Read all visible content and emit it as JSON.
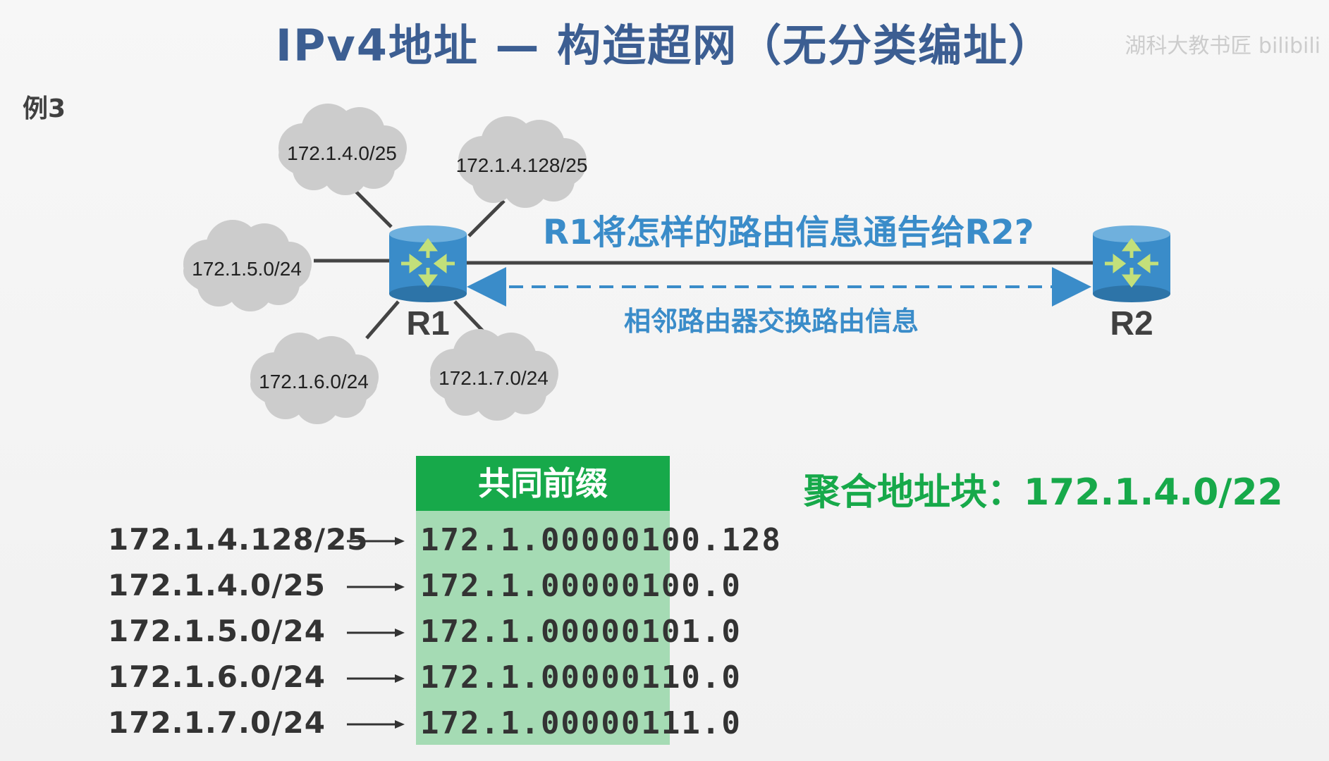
{
  "title": "IPv4地址 — 构造超网（无分类编址）",
  "watermark": "湖科大教书匠 bilibili",
  "example_label": "例3",
  "networks": [
    {
      "label": "172.1.4.0/25"
    },
    {
      "label": "172.1.4.128/25"
    },
    {
      "label": "172.1.5.0/24"
    },
    {
      "label": "172.1.6.0/24"
    },
    {
      "label": "172.1.7.0/24"
    }
  ],
  "routers": {
    "r1": "R1",
    "r2": "R2"
  },
  "question": "R1将怎样的路由信息通告给R2?",
  "exchange_label": "相邻路由器交换路由信息",
  "prefix_header": "共同前缀",
  "aggregate": "聚合地址块：172.1.4.0/22",
  "rows": [
    {
      "src": "172.1.4.128/25",
      "bin": "172.1.00000100.128"
    },
    {
      "src": "172.1.4.0/25",
      "bin": "172.1.00000100.0"
    },
    {
      "src": "172.1.5.0/24",
      "bin": "172.1.00000101.0"
    },
    {
      "src": "172.1.6.0/24",
      "bin": "172.1.00000110.0"
    },
    {
      "src": "172.1.7.0/24",
      "bin": "172.1.00000111.0"
    }
  ],
  "colors": {
    "title": "#3c5e92",
    "accent_blue": "#3a8cc9",
    "router": "#3a8cc9",
    "prefix_header": "#17a94a",
    "prefix_fill": "#a5dbb4",
    "cloud": "#cccccc"
  },
  "icons": {
    "router": "router-icon",
    "cloud": "cloud-icon",
    "arrow": "right-arrow-icon"
  }
}
